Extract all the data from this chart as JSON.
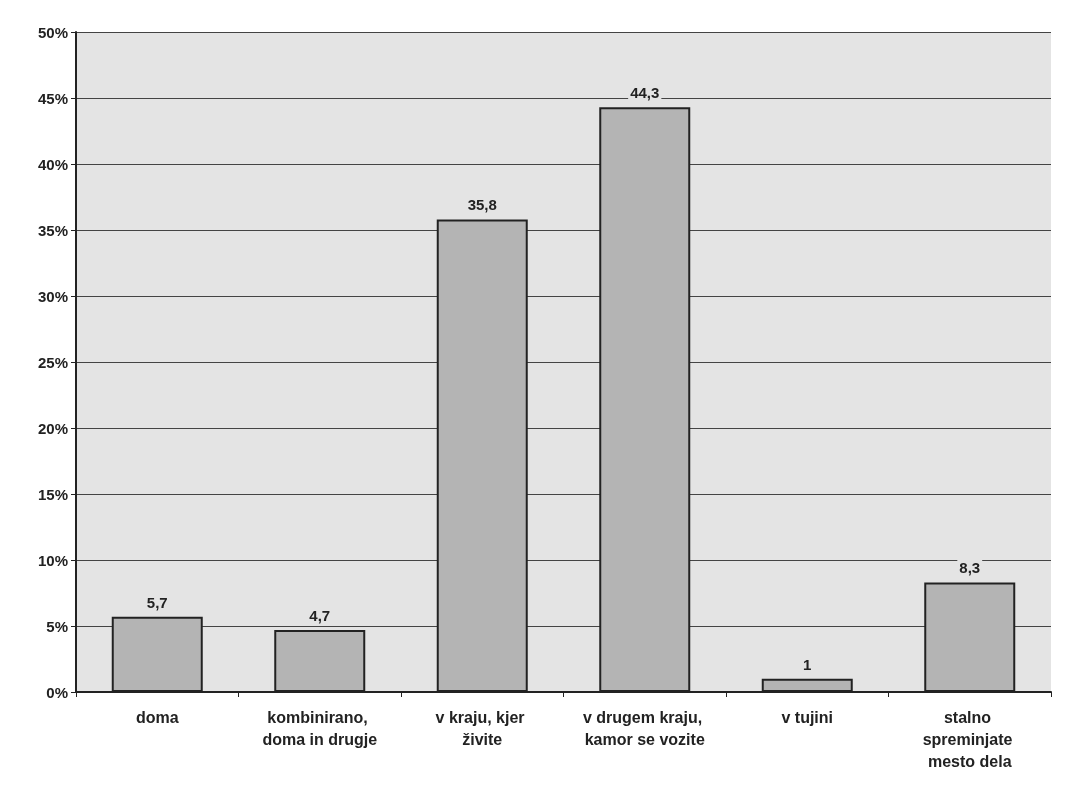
{
  "chart_data": {
    "type": "bar",
    "categories": [
      "doma",
      "kombinirano, doma in drugje",
      "v kraju, kjer živite",
      "v drugem kraju, kamor se vozite",
      "v tujini",
      "stalno spreminjate mesto dela"
    ],
    "values": [
      5.7,
      4.7,
      35.8,
      44.3,
      1,
      8.3
    ],
    "value_labels": [
      "5,7",
      "4,7",
      "35,8",
      "44,3",
      "1",
      "8,3"
    ],
    "color": "#b4b4b4",
    "ylim": [
      0,
      50
    ],
    "yticks": [
      {
        "value": 0,
        "label": "0%"
      },
      {
        "value": 5,
        "label": "5%"
      },
      {
        "value": 10,
        "label": "10%"
      },
      {
        "value": 15,
        "label": "15%"
      },
      {
        "value": 20,
        "label": "20%"
      },
      {
        "value": 25,
        "label": "25%"
      },
      {
        "value": 30,
        "label": "30%"
      },
      {
        "value": 35,
        "label": "35%"
      },
      {
        "value": 40,
        "label": "40%"
      },
      {
        "value": 45,
        "label": "45%"
      },
      {
        "value": 50,
        "label": "50%"
      }
    ],
    "grid": true
  }
}
